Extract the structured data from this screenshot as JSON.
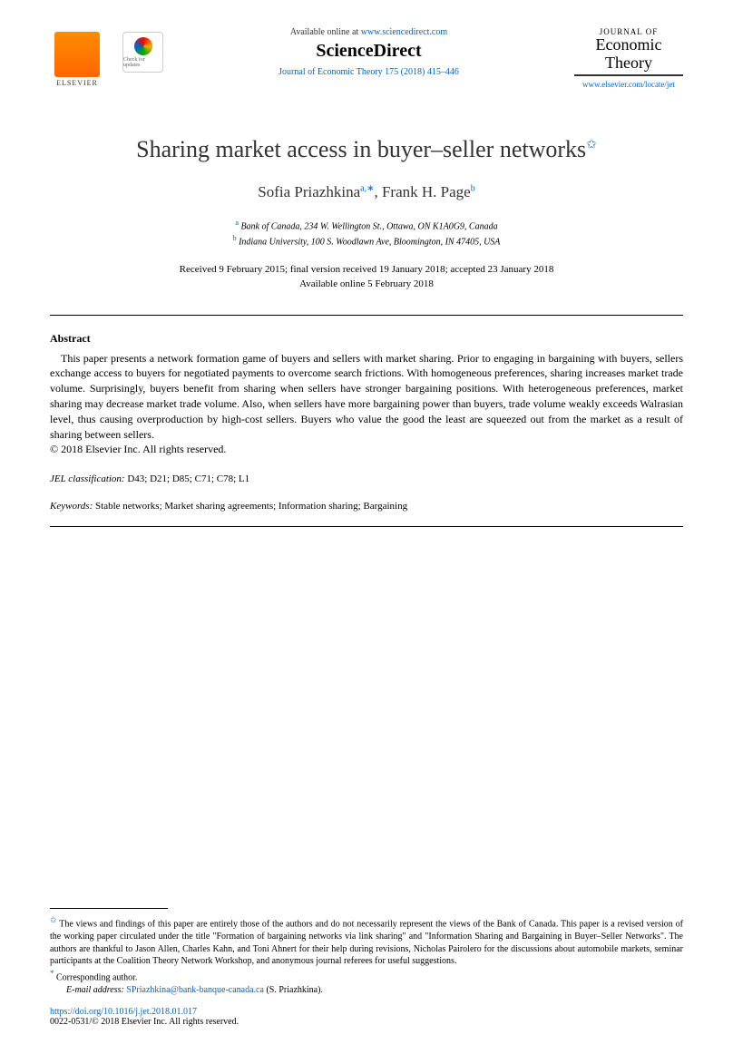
{
  "header": {
    "elsevier_label": "ELSEVIER",
    "crossmark_text": "Check for updates",
    "available_prefix": "Available online at ",
    "available_url": "www.sciencedirect.com",
    "sciencedirect": "ScienceDirect",
    "citation": "Journal of Economic Theory 175 (2018) 415–446",
    "journal_of": "JOURNAL OF",
    "journal_name_line1": "Economic",
    "journal_name_line2": "Theory",
    "journal_url": "www.elsevier.com/locate/jet"
  },
  "title": {
    "text": "Sharing market access in buyer–seller networks",
    "star": "✩"
  },
  "authors": {
    "a1_name": "Sofia Priazhkina",
    "a1_sup": "a,",
    "a1_corr": "∗",
    "sep": ", ",
    "a2_name": "Frank H. Page",
    "a2_sup": "b"
  },
  "affiliations": {
    "a_sup": "a",
    "a_text": " Bank of Canada, 234 W. Wellington St., Ottawa, ON K1A0G9, Canada",
    "b_sup": "b",
    "b_text": " Indiana University, 100 S. Woodlawn Ave, Bloomington, IN 47405, USA"
  },
  "dates": {
    "line1": "Received 9 February 2015; final version received 19 January 2018; accepted 23 January 2018",
    "line2": "Available online 5 February 2018"
  },
  "abstract": {
    "heading": "Abstract",
    "body": "This paper presents a network formation game of buyers and sellers with market sharing. Prior to engaging in bargaining with buyers, sellers exchange access to buyers for negotiated payments to overcome search frictions. With homogeneous preferences, sharing increases market trade volume. Surprisingly, buyers benefit from sharing when sellers have stronger bargaining positions. With heterogeneous preferences, market sharing may decrease market trade volume. Also, when sellers have more bargaining power than buyers, trade volume weakly exceeds Walrasian level, thus causing overproduction by high-cost sellers. Buyers who value the good the least are squeezed out from the market as a result of sharing between sellers.",
    "copyright": "© 2018 Elsevier Inc. All rights reserved."
  },
  "jel": {
    "label": "JEL classification: ",
    "codes": "D43; D21; D85; C71; C78; L1"
  },
  "keywords": {
    "label": "Keywords: ",
    "list": "Stable networks; Market sharing agreements; Information sharing; Bargaining"
  },
  "footnotes": {
    "star": "✩",
    "star_text": " The views and findings of this paper are entirely those of the authors and do not necessarily represent the views of the Bank of Canada. This paper is a revised version of the working paper circulated under the title \"Formation of bargaining networks via link sharing\" and \"Information Sharing and Bargaining in Buyer–Seller Networks\". The authors are thankful to Jason Allen, Charles Kahn, and Toni Ahnert for their help during revisions, Nicholas Pairolero for the discussions about automobile markets, seminar participants at the Coalition Theory Network Workshop, and anonymous journal referees for useful suggestions.",
    "corr_mark": "*",
    "corr_text": " Corresponding author.",
    "email_label": "E-mail address: ",
    "email": "SPriazhkina@bank-banque-canada.ca",
    "email_suffix": " (S. Priazhkina)."
  },
  "doi": {
    "url": "https://doi.org/10.1016/j.jet.2018.01.017",
    "issn_copyright": "0022-0531/© 2018 Elsevier Inc. All rights reserved."
  },
  "colors": {
    "link": "#0066cc",
    "text": "#000000",
    "elsevier_orange": "#ff6600"
  }
}
